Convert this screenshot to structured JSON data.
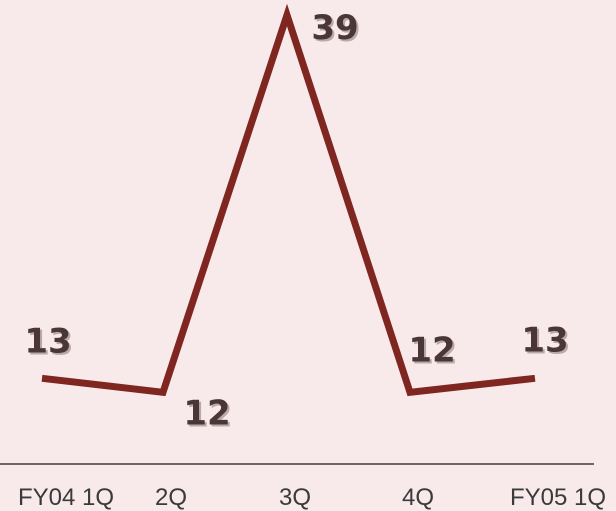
{
  "colors": {
    "background": "#f8eaea",
    "line": "#7f2620",
    "data_label": "#4a3636",
    "label_shadow": "#b9a9a9",
    "axis": "#3a3a3a",
    "tick_label": "#3a3a3a"
  },
  "chart_data": {
    "type": "line",
    "categories": [
      "FY04 1Q",
      "2Q",
      "3Q",
      "4Q",
      "FY05 1Q"
    ],
    "series": [
      {
        "values": [
          13,
          12,
          39,
          12,
          13
        ]
      }
    ],
    "data_labels": [
      "13",
      "12",
      "39",
      "12",
      "13"
    ],
    "title": "",
    "xlabel": "",
    "ylabel": "",
    "ylim": [
      0,
      39
    ],
    "grid": false,
    "legend": "none"
  }
}
